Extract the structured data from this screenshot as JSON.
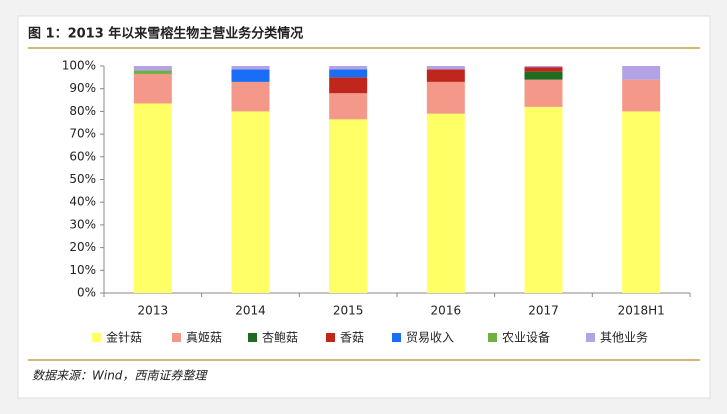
{
  "chart_data": {
    "type": "stacked_bar",
    "title": "图 1：2013 年以来雪榕生物主营业务分类情况",
    "source": "数据来源：Wind，西南证券整理",
    "categories": [
      "2013",
      "2014",
      "2015",
      "2016",
      "2017",
      "2018H1"
    ],
    "series": [
      {
        "name": "金针菇",
        "color": "#ffff66",
        "values": [
          83.5,
          80,
          76.5,
          79,
          82,
          80
        ]
      },
      {
        "name": "真姬菇",
        "color": "#f4998a",
        "values": [
          13,
          13,
          11.5,
          14,
          12,
          14
        ]
      },
      {
        "name": "杏鲍菇",
        "color": "#1f6b1f",
        "values": [
          0,
          0,
          0,
          0,
          3.5,
          0
        ]
      },
      {
        "name": "香菇",
        "color": "#c0261c",
        "values": [
          0,
          0,
          7,
          5.5,
          2,
          0
        ]
      },
      {
        "name": "贸易收入",
        "color": "#1a6ef5",
        "values": [
          0,
          5.5,
          3.5,
          0,
          0,
          0
        ]
      },
      {
        "name": "农业设备",
        "color": "#6fb043",
        "values": [
          1.5,
          0,
          0,
          0,
          0,
          0
        ]
      },
      {
        "name": "其他业务",
        "color": "#b3a3e6",
        "values": [
          2,
          1.5,
          1.5,
          1.5,
          0.5,
          6
        ]
      }
    ],
    "ylim": [
      0,
      100
    ],
    "yticks": [
      {
        "value": 0,
        "label": "0%"
      },
      {
        "value": 10,
        "label": "10%"
      },
      {
        "value": 20,
        "label": "20%"
      },
      {
        "value": 30,
        "label": "30%"
      },
      {
        "value": 40,
        "label": "40%"
      },
      {
        "value": 50,
        "label": "50%"
      },
      {
        "value": 60,
        "label": "60%"
      },
      {
        "value": 70,
        "label": "70%"
      },
      {
        "value": 80,
        "label": "80%"
      },
      {
        "value": 90,
        "label": "90%"
      },
      {
        "value": 100,
        "label": "100%"
      }
    ],
    "legend": "bottom"
  }
}
